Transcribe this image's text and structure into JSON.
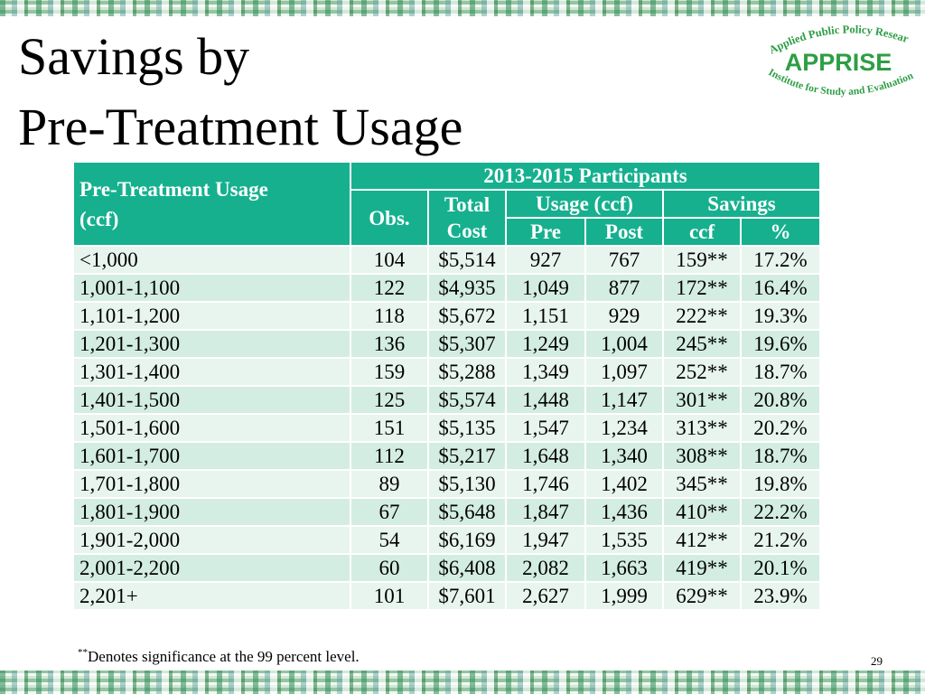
{
  "title": {
    "line1": "Savings by",
    "line2": "Pre-Treatment Usage"
  },
  "logo": {
    "top_text": "Applied Public Policy Research",
    "name": "APPRISE",
    "bottom_text": "Institute for Study and Evaluation",
    "color": "#2e9e45"
  },
  "table": {
    "group_header": "2013-2015 Participants",
    "headers": {
      "usage_line1": "Pre-Treatment Usage",
      "usage_line2": "(ccf)",
      "obs": "Obs.",
      "cost_line1": "Total",
      "cost_line2": "Cost",
      "usage_group": "Usage (ccf)",
      "pre": "Pre",
      "post": "Post",
      "savings_group": "Savings",
      "ccf": "ccf",
      "pct": "%"
    },
    "header_color": "#16b08f",
    "rows": [
      {
        "range": "<1,000",
        "obs": "104",
        "cost": "$5,514",
        "pre": "927",
        "post": "767",
        "ccf": "159**",
        "pct": "17.2%"
      },
      {
        "range": "1,001-1,100",
        "obs": "122",
        "cost": "$4,935",
        "pre": "1,049",
        "post": "877",
        "ccf": "172**",
        "pct": "16.4%"
      },
      {
        "range": "1,101-1,200",
        "obs": "118",
        "cost": "$5,672",
        "pre": "1,151",
        "post": "929",
        "ccf": "222**",
        "pct": "19.3%"
      },
      {
        "range": "1,201-1,300",
        "obs": "136",
        "cost": "$5,307",
        "pre": "1,249",
        "post": "1,004",
        "ccf": "245**",
        "pct": "19.6%"
      },
      {
        "range": "1,301-1,400",
        "obs": "159",
        "cost": "$5,288",
        "pre": "1,349",
        "post": "1,097",
        "ccf": "252**",
        "pct": "18.7%"
      },
      {
        "range": "1,401-1,500",
        "obs": "125",
        "cost": "$5,574",
        "pre": "1,448",
        "post": "1,147",
        "ccf": "301**",
        "pct": "20.8%"
      },
      {
        "range": "1,501-1,600",
        "obs": "151",
        "cost": "$5,135",
        "pre": "1,547",
        "post": "1,234",
        "ccf": "313**",
        "pct": "20.2%"
      },
      {
        "range": "1,601-1,700",
        "obs": "112",
        "cost": "$5,217",
        "pre": "1,648",
        "post": "1,340",
        "ccf": "308**",
        "pct": "18.7%"
      },
      {
        "range": "1,701-1,800",
        "obs": "89",
        "cost": "$5,130",
        "pre": "1,746",
        "post": "1,402",
        "ccf": "345**",
        "pct": "19.8%"
      },
      {
        "range": "1,801-1,900",
        "obs": "67",
        "cost": "$5,648",
        "pre": "1,847",
        "post": "1,436",
        "ccf": "410**",
        "pct": "22.2%"
      },
      {
        "range": "1,901-2,000",
        "obs": "54",
        "cost": "$6,169",
        "pre": "1,947",
        "post": "1,535",
        "ccf": "412**",
        "pct": "21.2%"
      },
      {
        "range": "2,001-2,200",
        "obs": "60",
        "cost": "$6,408",
        "pre": "2,082",
        "post": "1,663",
        "ccf": "419**",
        "pct": "20.1%"
      },
      {
        "range": "2,201+",
        "obs": "101",
        "cost": "$7,601",
        "pre": "2,627",
        "post": "1,999",
        "ccf": "629**",
        "pct": "23.9%"
      }
    ]
  },
  "footnote": {
    "marker": "**",
    "text": "Denotes significance at the 99 percent level."
  },
  "page_number": "29"
}
